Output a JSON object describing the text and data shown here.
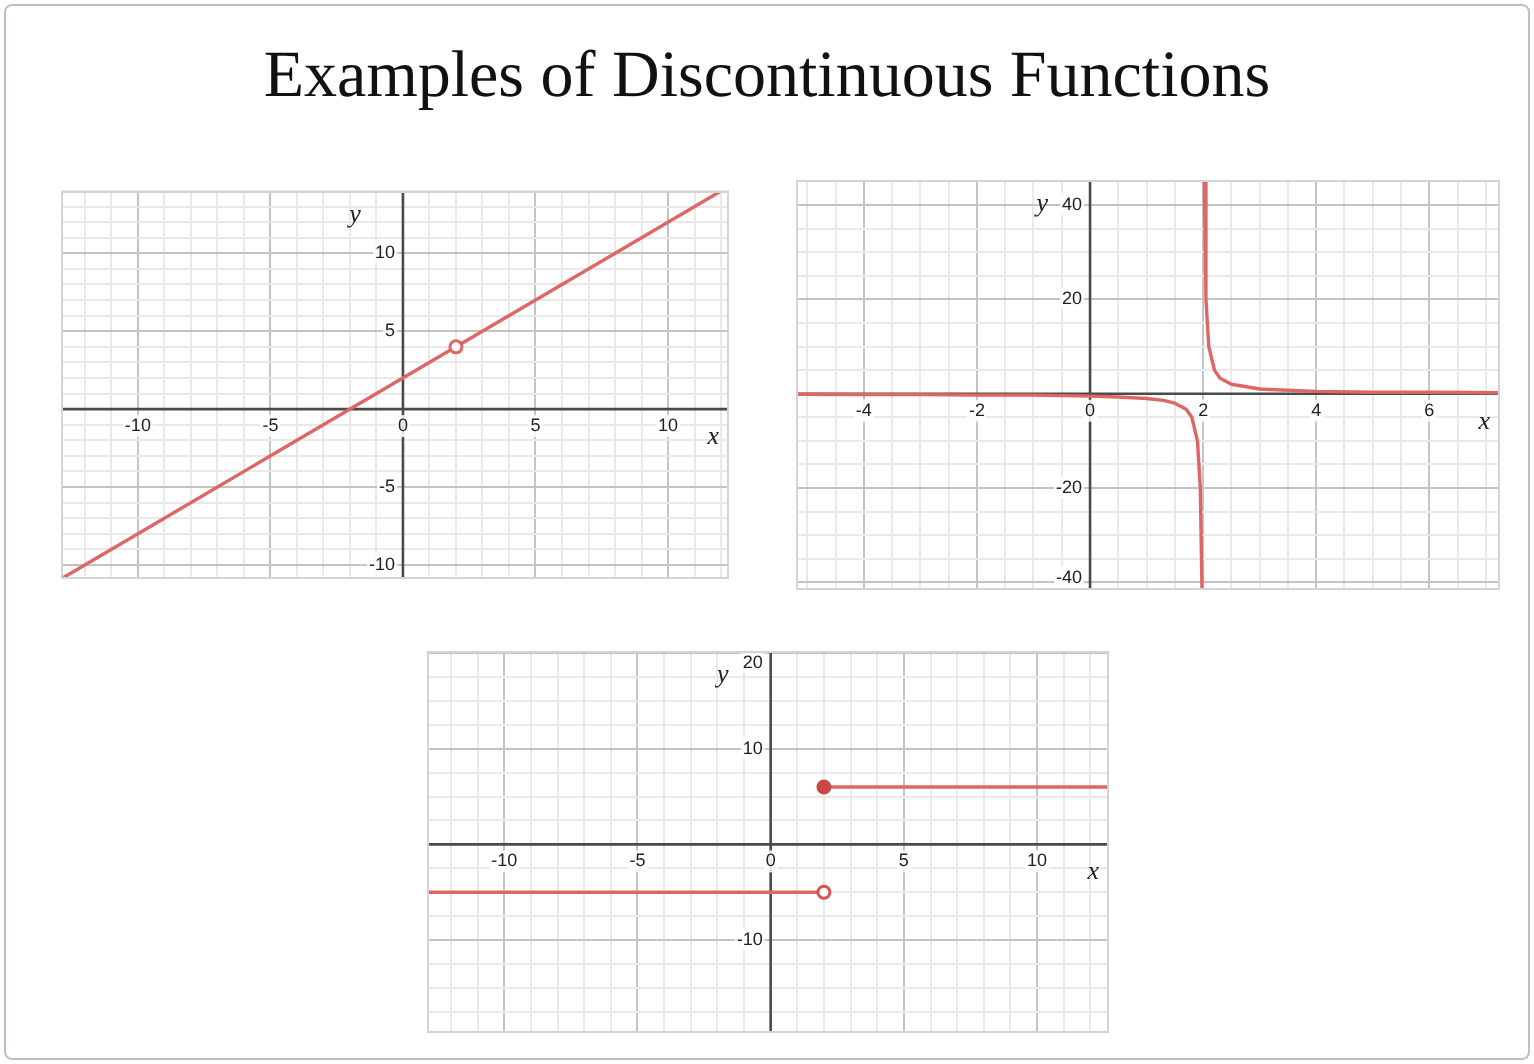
{
  "chart_data": [
    {
      "type": "line",
      "title": "Examples of Discontinuous Functions",
      "xlabel": "x",
      "ylabel": "y",
      "xlim": [
        -12.9,
        12.3
      ],
      "ylim": [
        -10.9,
        14
      ],
      "grid": true,
      "xticks": [
        {
          "value": -12,
          "label": null
        },
        {
          "value": -11,
          "label": null
        },
        -10,
        {
          "value": -9,
          "label": null
        },
        {
          "value": -8,
          "label": null
        },
        {
          "value": -7,
          "label": null
        },
        {
          "value": -6,
          "label": null
        },
        -5,
        {
          "value": -4,
          "label": null
        },
        {
          "value": -3,
          "label": null
        },
        {
          "value": -2,
          "label": null
        },
        {
          "value": -1,
          "label": null
        },
        0,
        {
          "value": 1,
          "label": null
        },
        {
          "value": 2,
          "label": null
        },
        {
          "value": 3,
          "label": null
        },
        {
          "value": 4,
          "label": null
        },
        5,
        {
          "value": 6,
          "label": null
        },
        {
          "value": 7,
          "label": null
        },
        {
          "value": 8,
          "label": null
        },
        {
          "value": 9,
          "label": null
        },
        10,
        {
          "value": 11,
          "label": null
        },
        {
          "value": 12,
          "label": null
        }
      ],
      "yticks": [
        -10,
        {
          "value": -9,
          "label": null
        },
        {
          "value": -8,
          "label": null
        },
        {
          "value": -7,
          "label": null
        },
        {
          "value": -6,
          "label": null
        },
        -5,
        {
          "value": -4,
          "label": null
        },
        {
          "value": -3,
          "label": null
        },
        {
          "value": -2,
          "label": null
        },
        {
          "value": -1,
          "label": null
        },
        {
          "value": 0,
          "label": null
        },
        {
          "value": 1,
          "label": null
        },
        {
          "value": 2,
          "label": null
        },
        {
          "value": 3,
          "label": null
        },
        {
          "value": 4,
          "label": null
        },
        5,
        {
          "value": 6,
          "label": null
        },
        {
          "value": 7,
          "label": null
        },
        {
          "value": 8,
          "label": null
        },
        {
          "value": 9,
          "label": null
        },
        10,
        {
          "value": 11,
          "label": null
        },
        {
          "value": 12,
          "label": null
        },
        {
          "value": 13,
          "label": null
        },
        {
          "value": 14,
          "label": null
        }
      ],
      "series": [
        {
          "color": "#de6664",
          "x": [
            -12.9,
            12
          ],
          "values": [
            -10.9,
            14
          ]
        },
        {
          "type": "scatter",
          "marker": "circle",
          "color": "#de6664",
          "colors": [
            "#ffffff"
          ],
          "x": [
            2
          ],
          "values": [
            4
          ]
        }
      ]
    },
    {
      "type": "line",
      "xlabel": "x",
      "ylabel": "y",
      "xlim": [
        -5.2,
        7.25
      ],
      "ylim": [
        -41.6,
        45.3
      ],
      "grid": true,
      "xticks": [
        {
          "value": -5,
          "label": null
        },
        {
          "value": -4.5,
          "label": null
        },
        -4,
        {
          "value": -3.5,
          "label": null
        },
        {
          "value": -3,
          "label": null
        },
        {
          "value": -2.5,
          "label": null
        },
        -2,
        {
          "value": -1.5,
          "label": null
        },
        {
          "value": -1,
          "label": null
        },
        {
          "value": -0.5,
          "label": null
        },
        0,
        {
          "value": 0.5,
          "label": null
        },
        {
          "value": 1,
          "label": null
        },
        {
          "value": 1.5,
          "label": null
        },
        2,
        {
          "value": 2.5,
          "label": null
        },
        {
          "value": 3,
          "label": null
        },
        {
          "value": 3.5,
          "label": null
        },
        4,
        {
          "value": 4.5,
          "label": null
        },
        {
          "value": 5,
          "label": null
        },
        {
          "value": 5.5,
          "label": null
        },
        6,
        {
          "value": 6.5,
          "label": null
        },
        {
          "value": 7,
          "label": null
        }
      ],
      "yticks": [
        -40,
        {
          "value": -35,
          "label": null
        },
        {
          "value": -30,
          "label": null
        },
        {
          "value": -25,
          "label": null
        },
        -20,
        {
          "value": -15,
          "label": null
        },
        {
          "value": -10,
          "label": null
        },
        {
          "value": -5,
          "label": null
        },
        {
          "value": 0,
          "label": null
        },
        {
          "value": 5,
          "label": null
        },
        {
          "value": 10,
          "label": null
        },
        {
          "value": 15,
          "label": null
        },
        20,
        {
          "value": 25,
          "label": null
        },
        {
          "value": 30,
          "label": null
        },
        {
          "value": 35,
          "label": null
        },
        40,
        {
          "value": 45,
          "label": null
        }
      ],
      "series": [
        {
          "color": "#de6664",
          "x": [
            -5.2,
            -4,
            -3,
            -2,
            -1,
            0,
            0.5,
            1,
            1.3,
            1.5,
            1.7,
            1.8,
            1.9,
            1.95,
            1.98,
            2,
            2.02,
            2.05,
            2.1,
            2.2,
            2.3,
            2.5,
            3,
            4,
            5,
            6,
            7.25
          ],
          "values": [
            -0.1,
            -0.2,
            -0.2,
            -0.3,
            -0.3,
            -0.5,
            -0.7,
            -1,
            -1.4,
            -2,
            -3.3,
            -5,
            -10,
            -20,
            -41.6,
            null,
            45.3,
            20,
            10,
            5,
            3.3,
            2,
            1,
            0.5,
            0.3,
            0.3,
            0.2
          ]
        }
      ]
    },
    {
      "type": "line",
      "xlabel": "x",
      "ylabel": "y",
      "xlim": [
        -12.9,
        12.7
      ],
      "ylim": [
        -19.7,
        20.2
      ],
      "grid": true,
      "xticks": [
        {
          "value": -12,
          "label": null
        },
        {
          "value": -11,
          "label": null
        },
        -10,
        {
          "value": -9,
          "label": null
        },
        {
          "value": -8,
          "label": null
        },
        {
          "value": -7,
          "label": null
        },
        {
          "value": -6,
          "label": null
        },
        -5,
        {
          "value": -4,
          "label": null
        },
        {
          "value": -3,
          "label": null
        },
        {
          "value": -2,
          "label": null
        },
        {
          "value": -1,
          "label": null
        },
        0,
        {
          "value": 1,
          "label": null
        },
        {
          "value": 2,
          "label": null
        },
        {
          "value": 3,
          "label": null
        },
        {
          "value": 4,
          "label": null
        },
        5,
        {
          "value": 6,
          "label": null
        },
        {
          "value": 7,
          "label": null
        },
        {
          "value": 8,
          "label": null
        },
        {
          "value": 9,
          "label": null
        },
        10,
        {
          "value": 11,
          "label": null
        },
        {
          "value": 12,
          "label": null
        }
      ],
      "yticks": [
        {
          "value": -17.5,
          "label": null
        },
        {
          "value": -15,
          "label": null
        },
        {
          "value": -12.5,
          "label": null
        },
        -10,
        {
          "value": -7.5,
          "label": null
        },
        {
          "value": -5,
          "label": null
        },
        {
          "value": -2.5,
          "label": null
        },
        {
          "value": 0,
          "label": null
        },
        {
          "value": 2.5,
          "label": null
        },
        {
          "value": 5,
          "label": null
        },
        {
          "value": 7.5,
          "label": null
        },
        10,
        {
          "value": 12.5,
          "label": null
        },
        {
          "value": 15,
          "label": null
        },
        {
          "value": 17.5,
          "label": null
        },
        20
      ],
      "series": [
        {
          "color": "#de6664",
          "x": [
            -12.9,
            2
          ],
          "values": [
            -5,
            -5
          ]
        },
        {
          "color": "#de6664",
          "x": [
            2,
            12.7
          ],
          "values": [
            6,
            6
          ]
        },
        {
          "type": "scatter",
          "marker": "circle",
          "color": "#d65250",
          "colors": [
            "#ffffff"
          ],
          "x": [
            2
          ],
          "values": [
            -5
          ]
        },
        {
          "type": "scatter",
          "marker": "circle",
          "color": "#c94845",
          "colors": [
            "#c94845"
          ],
          "x": [
            2
          ],
          "values": [
            6
          ]
        }
      ]
    }
  ]
}
